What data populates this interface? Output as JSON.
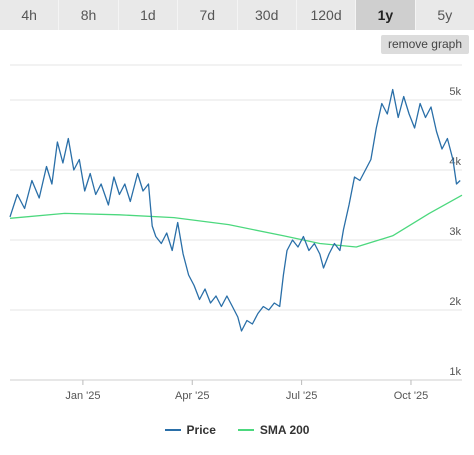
{
  "tabs": [
    {
      "label": "4h",
      "active": false
    },
    {
      "label": "8h",
      "active": false
    },
    {
      "label": "1d",
      "active": false
    },
    {
      "label": "7d",
      "active": false
    },
    {
      "label": "30d",
      "active": false
    },
    {
      "label": "120d",
      "active": false
    },
    {
      "label": "1y",
      "active": true
    },
    {
      "label": "5y",
      "active": false
    }
  ],
  "remove_graph_label": "remove graph",
  "chart_data": {
    "type": "line",
    "title": "",
    "xlabel": "",
    "ylabel": "",
    "x_ticks": [
      {
        "label": "Jan '25",
        "month": 2
      },
      {
        "label": "Apr '25",
        "month": 5
      },
      {
        "label": "Jul '25",
        "month": 8
      },
      {
        "label": "Oct '25",
        "month": 11
      }
    ],
    "y_ticks": [
      {
        "label": "1k",
        "value": 1000
      },
      {
        "label": "2k",
        "value": 2000
      },
      {
        "label": "3k",
        "value": 3000
      },
      {
        "label": "4k",
        "value": 4000
      },
      {
        "label": "5k",
        "value": 5000
      }
    ],
    "x_range_months": [
      0,
      12.4
    ],
    "ylim": [
      1000,
      5000
    ],
    "grid": true,
    "legend_position": "bottom-center",
    "series": [
      {
        "name": "Price",
        "color": "#2a6fa8",
        "points": [
          [
            0.0,
            3330
          ],
          [
            0.2,
            3650
          ],
          [
            0.4,
            3450
          ],
          [
            0.6,
            3850
          ],
          [
            0.8,
            3600
          ],
          [
            1.0,
            4050
          ],
          [
            1.15,
            3800
          ],
          [
            1.3,
            4400
          ],
          [
            1.45,
            4100
          ],
          [
            1.6,
            4450
          ],
          [
            1.75,
            4000
          ],
          [
            1.9,
            4150
          ],
          [
            2.05,
            3700
          ],
          [
            2.2,
            3950
          ],
          [
            2.35,
            3650
          ],
          [
            2.5,
            3800
          ],
          [
            2.7,
            3500
          ],
          [
            2.85,
            3900
          ],
          [
            3.0,
            3650
          ],
          [
            3.15,
            3800
          ],
          [
            3.3,
            3550
          ],
          [
            3.5,
            3950
          ],
          [
            3.65,
            3700
          ],
          [
            3.8,
            3800
          ],
          [
            3.9,
            3200
          ],
          [
            4.0,
            3050
          ],
          [
            4.15,
            2950
          ],
          [
            4.3,
            3100
          ],
          [
            4.45,
            2850
          ],
          [
            4.6,
            3250
          ],
          [
            4.75,
            2800
          ],
          [
            4.9,
            2500
          ],
          [
            5.05,
            2350
          ],
          [
            5.2,
            2150
          ],
          [
            5.35,
            2300
          ],
          [
            5.5,
            2100
          ],
          [
            5.65,
            2200
          ],
          [
            5.8,
            2050
          ],
          [
            5.95,
            2200
          ],
          [
            6.1,
            2050
          ],
          [
            6.25,
            1900
          ],
          [
            6.35,
            1700
          ],
          [
            6.5,
            1850
          ],
          [
            6.65,
            1800
          ],
          [
            6.8,
            1950
          ],
          [
            6.95,
            2050
          ],
          [
            7.1,
            2000
          ],
          [
            7.25,
            2100
          ],
          [
            7.4,
            2050
          ],
          [
            7.5,
            2500
          ],
          [
            7.6,
            2850
          ],
          [
            7.75,
            3000
          ],
          [
            7.9,
            2900
          ],
          [
            8.05,
            3050
          ],
          [
            8.2,
            2850
          ],
          [
            8.35,
            2950
          ],
          [
            8.5,
            2800
          ],
          [
            8.6,
            2600
          ],
          [
            8.75,
            2800
          ],
          [
            8.9,
            2950
          ],
          [
            9.05,
            2850
          ],
          [
            9.15,
            3150
          ],
          [
            9.3,
            3500
          ],
          [
            9.45,
            3900
          ],
          [
            9.6,
            3850
          ],
          [
            9.75,
            4000
          ],
          [
            9.9,
            4150
          ],
          [
            10.05,
            4600
          ],
          [
            10.2,
            4950
          ],
          [
            10.35,
            4800
          ],
          [
            10.5,
            5150
          ],
          [
            10.65,
            4750
          ],
          [
            10.8,
            5050
          ],
          [
            10.95,
            4800
          ],
          [
            11.1,
            4600
          ],
          [
            11.25,
            4950
          ],
          [
            11.4,
            4750
          ],
          [
            11.55,
            4900
          ],
          [
            11.7,
            4550
          ],
          [
            11.85,
            4300
          ],
          [
            12.0,
            4450
          ],
          [
            12.15,
            4150
          ],
          [
            12.25,
            3800
          ],
          [
            12.35,
            3850
          ]
        ]
      },
      {
        "name": "SMA 200",
        "color": "#4cd87e",
        "points": [
          [
            0.0,
            3310
          ],
          [
            1.5,
            3380
          ],
          [
            3.0,
            3360
          ],
          [
            4.5,
            3320
          ],
          [
            6.0,
            3220
          ],
          [
            7.5,
            3060
          ],
          [
            8.5,
            2950
          ],
          [
            9.5,
            2900
          ],
          [
            10.5,
            3060
          ],
          [
            11.5,
            3380
          ],
          [
            12.4,
            3640
          ]
        ]
      }
    ]
  }
}
